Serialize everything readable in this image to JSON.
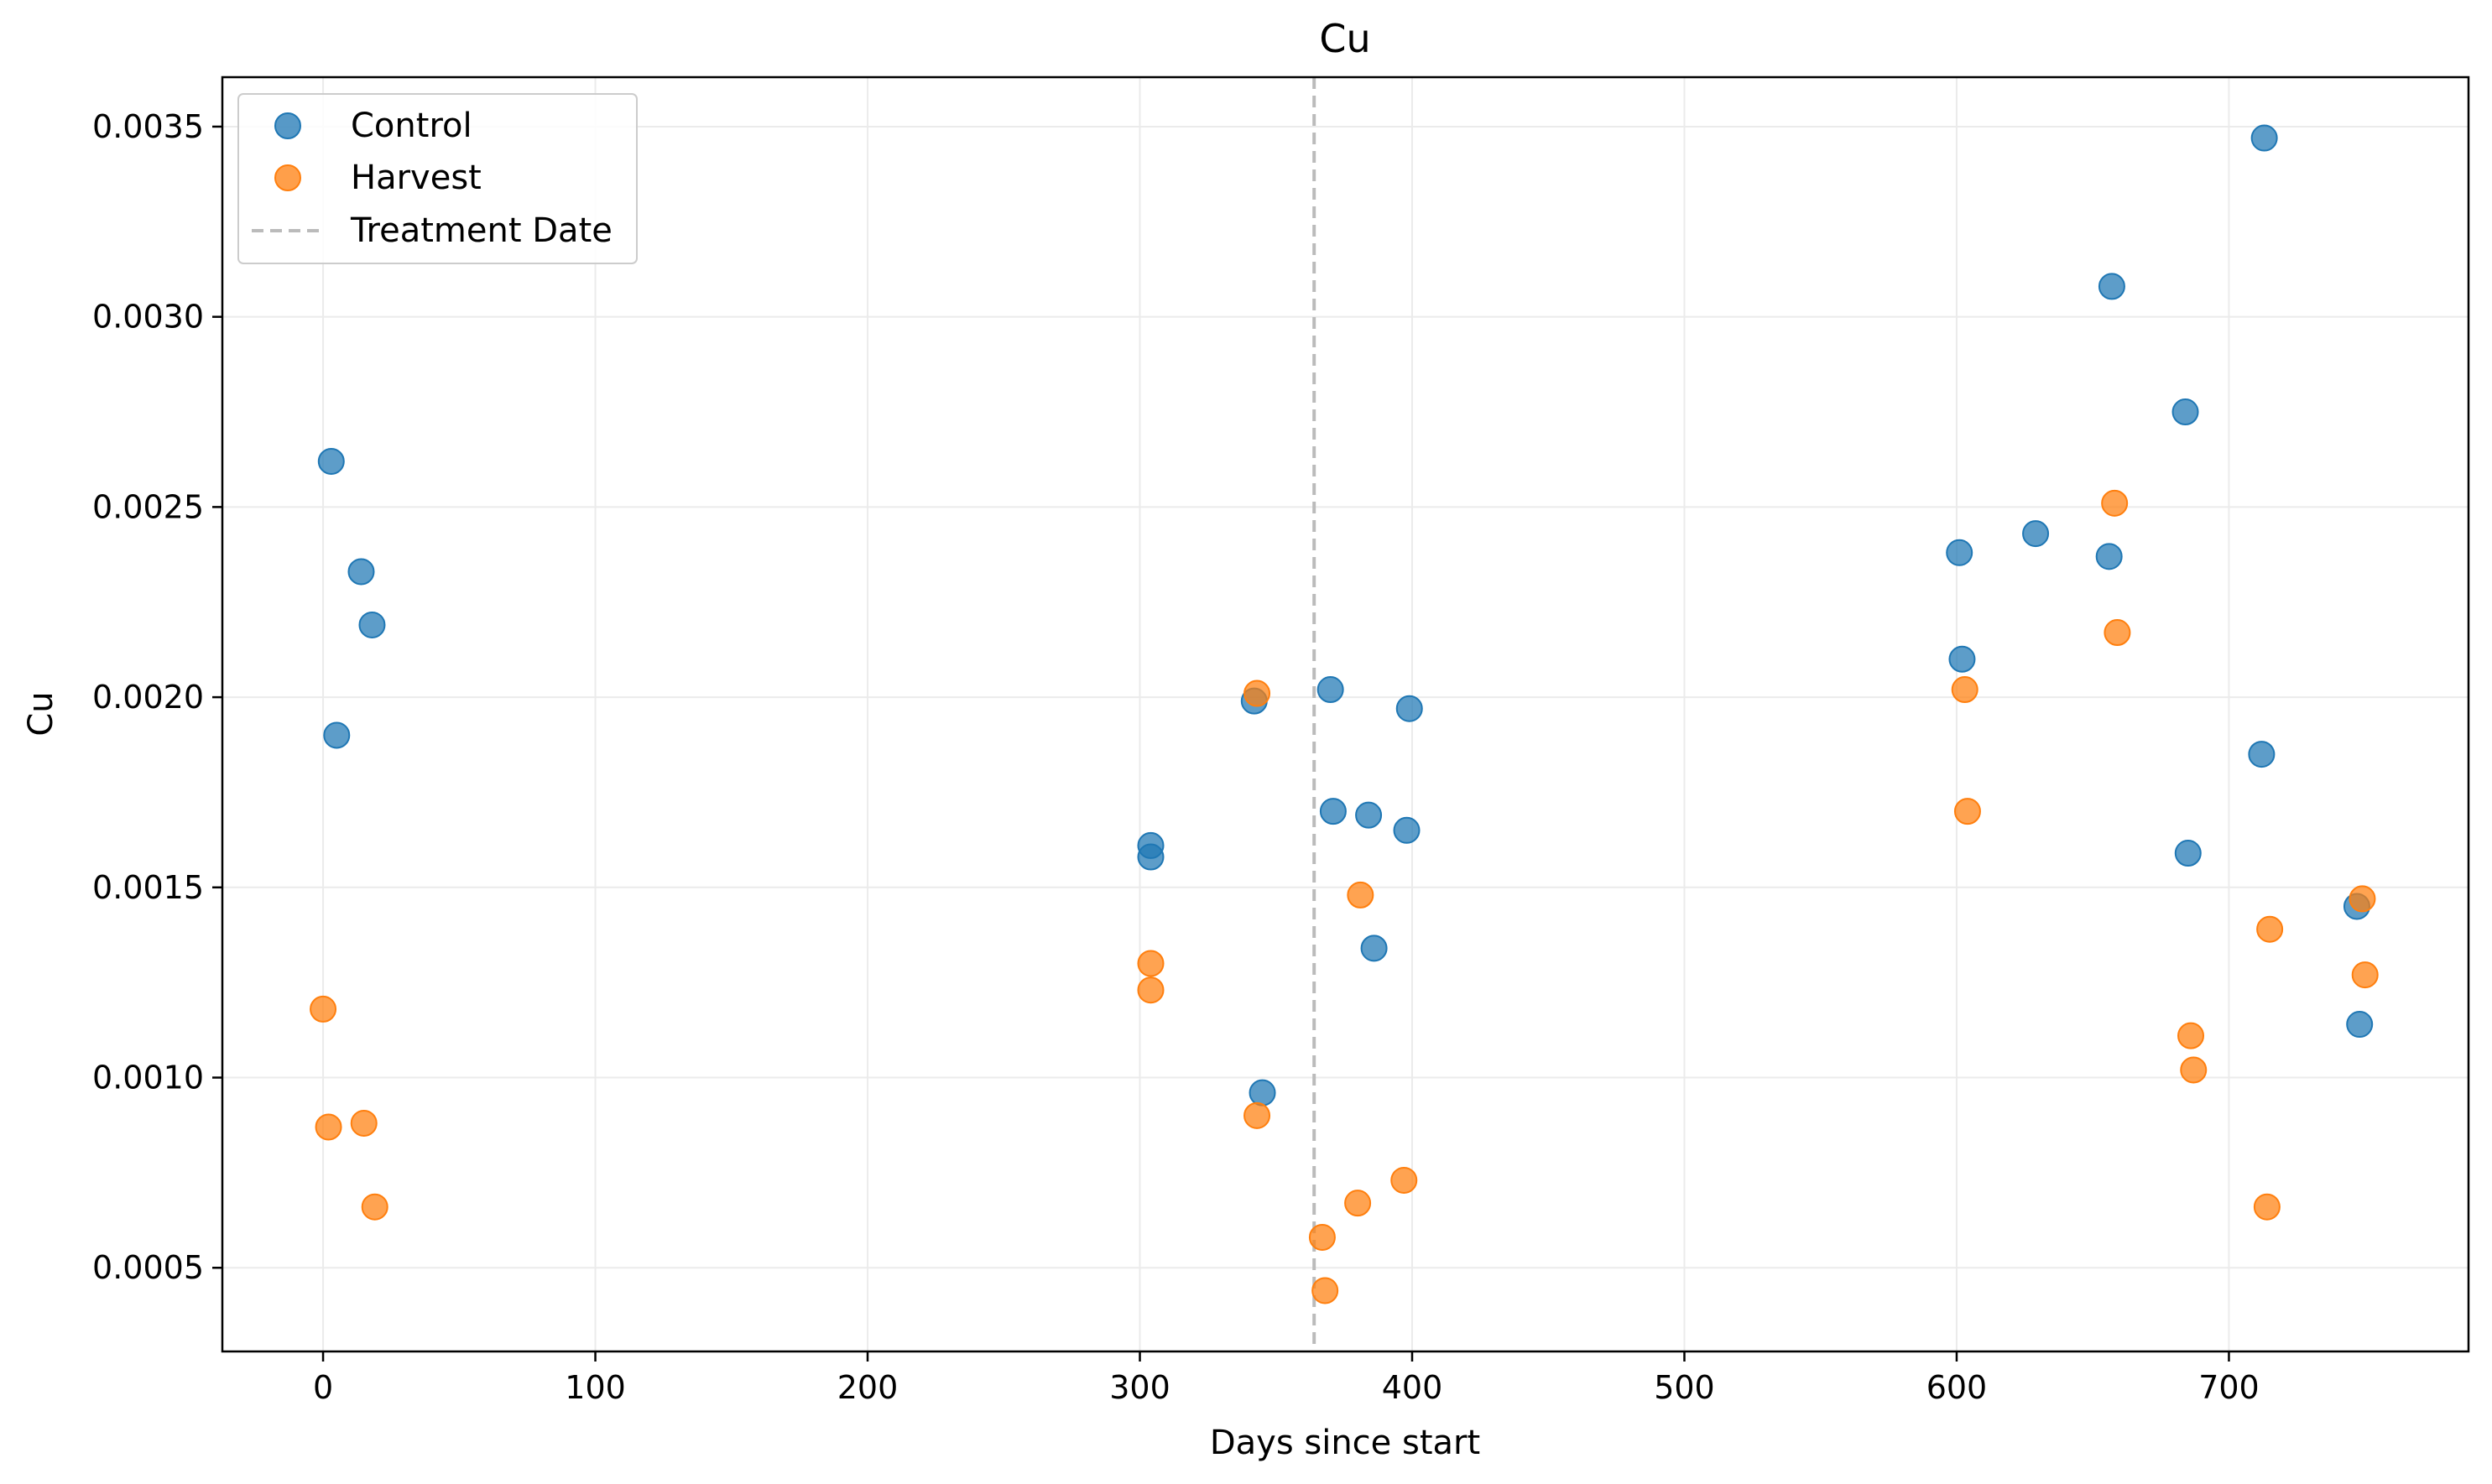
{
  "chart_data": {
    "type": "scatter",
    "title": "Cu",
    "xlabel": "Days since start",
    "ylabel": "Cu",
    "xlim": [
      -37,
      788
    ],
    "ylim": [
      0.00028,
      0.00363
    ],
    "xticks": [
      0,
      100,
      200,
      300,
      400,
      500,
      600,
      700
    ],
    "xtick_labels": [
      "0",
      "100",
      "200",
      "300",
      "400",
      "500",
      "600",
      "700"
    ],
    "yticks": [
      0.0005,
      0.001,
      0.0015,
      0.002,
      0.0025,
      0.003,
      0.0035
    ],
    "ytick_labels": [
      "0.0005",
      "0.0010",
      "0.0015",
      "0.0020",
      "0.0025",
      "0.0030",
      "0.0035"
    ],
    "grid": true,
    "legend_position": "top-left",
    "treatment_date": 364,
    "series": [
      {
        "name": "Control",
        "color": "#1f77b4",
        "points": [
          [
            3,
            0.00262
          ],
          [
            14,
            0.00233
          ],
          [
            18,
            0.00219
          ],
          [
            5,
            0.0019
          ],
          [
            304,
            0.00161
          ],
          [
            304,
            0.00158
          ],
          [
            342,
            0.00199
          ],
          [
            345,
            0.00096
          ],
          [
            370,
            0.00202
          ],
          [
            371,
            0.0017
          ],
          [
            384,
            0.00169
          ],
          [
            386,
            0.00134
          ],
          [
            398,
            0.00165
          ],
          [
            399,
            0.00197
          ],
          [
            601,
            0.00238
          ],
          [
            602,
            0.0021
          ],
          [
            629,
            0.00243
          ],
          [
            656,
            0.00237
          ],
          [
            657,
            0.00308
          ],
          [
            684,
            0.00275
          ],
          [
            685,
            0.00159
          ],
          [
            712,
            0.00185
          ],
          [
            713,
            0.00347
          ],
          [
            747,
            0.00145
          ],
          [
            748,
            0.00114
          ]
        ]
      },
      {
        "name": "Harvest",
        "color": "#ff7f0e",
        "points": [
          [
            0,
            0.00118
          ],
          [
            2,
            0.00087
          ],
          [
            15,
            0.00088
          ],
          [
            19,
            0.00066
          ],
          [
            304,
            0.0013
          ],
          [
            304,
            0.00123
          ],
          [
            343,
            0.00201
          ],
          [
            343,
            0.0009
          ],
          [
            367,
            0.00058
          ],
          [
            368,
            0.00044
          ],
          [
            380,
            0.00067
          ],
          [
            381,
            0.00148
          ],
          [
            397,
            0.00073
          ],
          [
            603,
            0.00202
          ],
          [
            604,
            0.0017
          ],
          [
            658,
            0.00251
          ],
          [
            659,
            0.00217
          ],
          [
            686,
            0.00111
          ],
          [
            687,
            0.00102
          ],
          [
            714,
            0.00066
          ],
          [
            715,
            0.00139
          ],
          [
            749,
            0.00147
          ],
          [
            750,
            0.00127
          ]
        ]
      }
    ],
    "legend": {
      "treatment_label": "Treatment Date",
      "treatment_color": "#bbbbbb"
    }
  }
}
